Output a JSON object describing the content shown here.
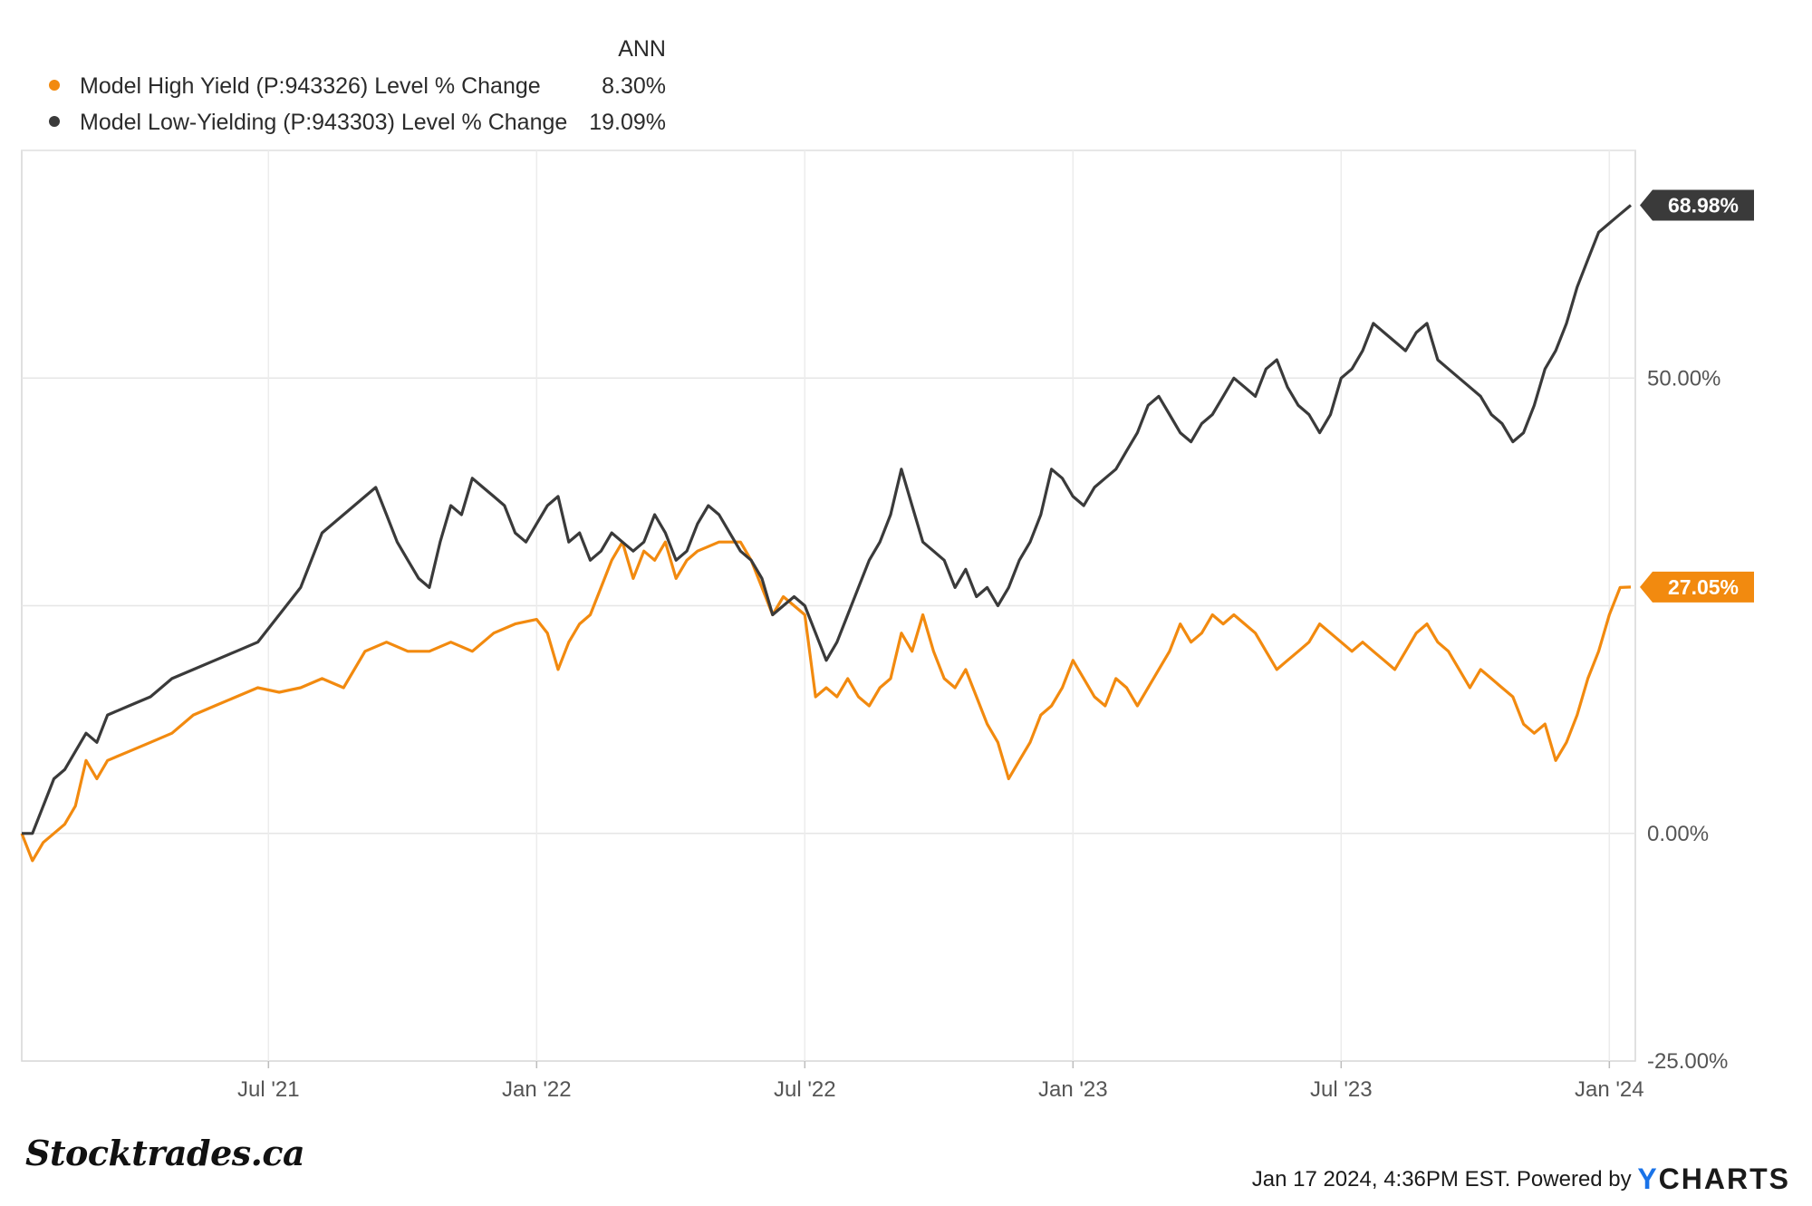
{
  "chart_data": {
    "type": "line",
    "legend": {
      "column_header": "ANN",
      "entries": [
        {
          "name": "Model High Yield (P:943326) Level % Change",
          "ann": "8.30%",
          "color": "#f28a0f"
        },
        {
          "name": "Model Low-Yielding (P:943303) Level % Change",
          "ann": "19.09%",
          "color": "#3a3a3a"
        }
      ]
    },
    "x_ticks": [
      "Jul '21",
      "Jan '22",
      "Jul '22",
      "Jan '23",
      "Jul '23",
      "Jan '24"
    ],
    "x_tick_times": [
      0.5,
      1.0,
      1.5,
      2.0,
      2.5,
      3.0
    ],
    "x_range": [
      0.04,
      3.04
    ],
    "y_ticks": [
      "50.00%",
      "0.00%",
      "-25.00%"
    ],
    "y_tick_values": [
      50,
      0,
      -25
    ],
    "y_gridlines": [
      75,
      50,
      25,
      0
    ],
    "ylim": [
      -25,
      75
    ],
    "series": [
      {
        "name": "Model High Yield",
        "color": "#f28a0f",
        "end_label": "27.05%",
        "end_value": 27.05,
        "points": [
          [
            0.04,
            0
          ],
          [
            0.06,
            -3
          ],
          [
            0.08,
            -1
          ],
          [
            0.1,
            0
          ],
          [
            0.12,
            1
          ],
          [
            0.14,
            3
          ],
          [
            0.16,
            8
          ],
          [
            0.18,
            6
          ],
          [
            0.2,
            8
          ],
          [
            0.24,
            9
          ],
          [
            0.28,
            10
          ],
          [
            0.32,
            11
          ],
          [
            0.36,
            13
          ],
          [
            0.4,
            14
          ],
          [
            0.44,
            15
          ],
          [
            0.48,
            16
          ],
          [
            0.52,
            15.5
          ],
          [
            0.56,
            16
          ],
          [
            0.6,
            17
          ],
          [
            0.64,
            16
          ],
          [
            0.68,
            20
          ],
          [
            0.72,
            21
          ],
          [
            0.76,
            20
          ],
          [
            0.8,
            20
          ],
          [
            0.84,
            21
          ],
          [
            0.88,
            20
          ],
          [
            0.92,
            22
          ],
          [
            0.96,
            23
          ],
          [
            1.0,
            23.5
          ],
          [
            1.02,
            22
          ],
          [
            1.04,
            18
          ],
          [
            1.06,
            21
          ],
          [
            1.08,
            23
          ],
          [
            1.1,
            24
          ],
          [
            1.12,
            27
          ],
          [
            1.14,
            30
          ],
          [
            1.16,
            32
          ],
          [
            1.18,
            28
          ],
          [
            1.2,
            31
          ],
          [
            1.22,
            30
          ],
          [
            1.24,
            32
          ],
          [
            1.26,
            28
          ],
          [
            1.28,
            30
          ],
          [
            1.3,
            31
          ],
          [
            1.32,
            31.5
          ],
          [
            1.34,
            32
          ],
          [
            1.36,
            32
          ],
          [
            1.38,
            32
          ],
          [
            1.4,
            30
          ],
          [
            1.42,
            27
          ],
          [
            1.44,
            24
          ],
          [
            1.46,
            26
          ],
          [
            1.48,
            25
          ],
          [
            1.5,
            24
          ],
          [
            1.52,
            15
          ],
          [
            1.54,
            16
          ],
          [
            1.56,
            15
          ],
          [
            1.58,
            17
          ],
          [
            1.6,
            15
          ],
          [
            1.62,
            14
          ],
          [
            1.64,
            16
          ],
          [
            1.66,
            17
          ],
          [
            1.68,
            22
          ],
          [
            1.7,
            20
          ],
          [
            1.72,
            24
          ],
          [
            1.74,
            20
          ],
          [
            1.76,
            17
          ],
          [
            1.78,
            16
          ],
          [
            1.8,
            18
          ],
          [
            1.82,
            15
          ],
          [
            1.84,
            12
          ],
          [
            1.86,
            10
          ],
          [
            1.88,
            6
          ],
          [
            1.9,
            8
          ],
          [
            1.92,
            10
          ],
          [
            1.94,
            13
          ],
          [
            1.96,
            14
          ],
          [
            1.98,
            16
          ],
          [
            2.0,
            19
          ],
          [
            2.02,
            17
          ],
          [
            2.04,
            15
          ],
          [
            2.06,
            14
          ],
          [
            2.08,
            17
          ],
          [
            2.1,
            16
          ],
          [
            2.12,
            14
          ],
          [
            2.14,
            16
          ],
          [
            2.16,
            18
          ],
          [
            2.18,
            20
          ],
          [
            2.2,
            23
          ],
          [
            2.22,
            21
          ],
          [
            2.24,
            22
          ],
          [
            2.26,
            24
          ],
          [
            2.28,
            23
          ],
          [
            2.3,
            24
          ],
          [
            2.32,
            23
          ],
          [
            2.34,
            22
          ],
          [
            2.36,
            20
          ],
          [
            2.38,
            18
          ],
          [
            2.4,
            19
          ],
          [
            2.42,
            20
          ],
          [
            2.44,
            21
          ],
          [
            2.46,
            23
          ],
          [
            2.48,
            22
          ],
          [
            2.5,
            21
          ],
          [
            2.52,
            20
          ],
          [
            2.54,
            21
          ],
          [
            2.56,
            20
          ],
          [
            2.58,
            19
          ],
          [
            2.6,
            18
          ],
          [
            2.62,
            20
          ],
          [
            2.64,
            22
          ],
          [
            2.66,
            23
          ],
          [
            2.68,
            21
          ],
          [
            2.7,
            20
          ],
          [
            2.72,
            18
          ],
          [
            2.74,
            16
          ],
          [
            2.76,
            18
          ],
          [
            2.78,
            17
          ],
          [
            2.8,
            16
          ],
          [
            2.82,
            15
          ],
          [
            2.84,
            12
          ],
          [
            2.86,
            11
          ],
          [
            2.88,
            12
          ],
          [
            2.9,
            8
          ],
          [
            2.92,
            10
          ],
          [
            2.94,
            13
          ],
          [
            2.96,
            17
          ],
          [
            2.98,
            20
          ],
          [
            3.0,
            24
          ],
          [
            3.02,
            27
          ],
          [
            3.04,
            27.05
          ]
        ]
      },
      {
        "name": "Model Low-Yielding",
        "color": "#3a3a3a",
        "end_label": "68.98%",
        "end_value": 68.98,
        "points": [
          [
            0.04,
            0
          ],
          [
            0.06,
            0
          ],
          [
            0.08,
            3
          ],
          [
            0.1,
            6
          ],
          [
            0.12,
            7
          ],
          [
            0.14,
            9
          ],
          [
            0.16,
            11
          ],
          [
            0.18,
            10
          ],
          [
            0.2,
            13
          ],
          [
            0.24,
            14
          ],
          [
            0.28,
            15
          ],
          [
            0.32,
            17
          ],
          [
            0.36,
            18
          ],
          [
            0.4,
            19
          ],
          [
            0.44,
            20
          ],
          [
            0.48,
            21
          ],
          [
            0.52,
            24
          ],
          [
            0.56,
            27
          ],
          [
            0.6,
            33
          ],
          [
            0.64,
            35
          ],
          [
            0.68,
            37
          ],
          [
            0.7,
            38
          ],
          [
            0.72,
            35
          ],
          [
            0.74,
            32
          ],
          [
            0.76,
            30
          ],
          [
            0.78,
            28
          ],
          [
            0.8,
            27
          ],
          [
            0.82,
            32
          ],
          [
            0.84,
            36
          ],
          [
            0.86,
            35
          ],
          [
            0.88,
            39
          ],
          [
            0.9,
            38
          ],
          [
            0.92,
            37
          ],
          [
            0.94,
            36
          ],
          [
            0.96,
            33
          ],
          [
            0.98,
            32
          ],
          [
            1.0,
            34
          ],
          [
            1.02,
            36
          ],
          [
            1.04,
            37
          ],
          [
            1.06,
            32
          ],
          [
            1.08,
            33
          ],
          [
            1.1,
            30
          ],
          [
            1.12,
            31
          ],
          [
            1.14,
            33
          ],
          [
            1.16,
            32
          ],
          [
            1.18,
            31
          ],
          [
            1.2,
            32
          ],
          [
            1.22,
            35
          ],
          [
            1.24,
            33
          ],
          [
            1.26,
            30
          ],
          [
            1.28,
            31
          ],
          [
            1.3,
            34
          ],
          [
            1.32,
            36
          ],
          [
            1.34,
            35
          ],
          [
            1.36,
            33
          ],
          [
            1.38,
            31
          ],
          [
            1.4,
            30
          ],
          [
            1.42,
            28
          ],
          [
            1.44,
            24
          ],
          [
            1.46,
            25
          ],
          [
            1.48,
            26
          ],
          [
            1.5,
            25
          ],
          [
            1.52,
            22
          ],
          [
            1.54,
            19
          ],
          [
            1.56,
            21
          ],
          [
            1.58,
            24
          ],
          [
            1.6,
            27
          ],
          [
            1.62,
            30
          ],
          [
            1.64,
            32
          ],
          [
            1.66,
            35
          ],
          [
            1.68,
            40
          ],
          [
            1.7,
            36
          ],
          [
            1.72,
            32
          ],
          [
            1.74,
            31
          ],
          [
            1.76,
            30
          ],
          [
            1.78,
            27
          ],
          [
            1.8,
            29
          ],
          [
            1.82,
            26
          ],
          [
            1.84,
            27
          ],
          [
            1.86,
            25
          ],
          [
            1.88,
            27
          ],
          [
            1.9,
            30
          ],
          [
            1.92,
            32
          ],
          [
            1.94,
            35
          ],
          [
            1.96,
            40
          ],
          [
            1.98,
            39
          ],
          [
            2.0,
            37
          ],
          [
            2.02,
            36
          ],
          [
            2.04,
            38
          ],
          [
            2.06,
            39
          ],
          [
            2.08,
            40
          ],
          [
            2.1,
            42
          ],
          [
            2.12,
            44
          ],
          [
            2.14,
            47
          ],
          [
            2.16,
            48
          ],
          [
            2.18,
            46
          ],
          [
            2.2,
            44
          ],
          [
            2.22,
            43
          ],
          [
            2.24,
            45
          ],
          [
            2.26,
            46
          ],
          [
            2.28,
            48
          ],
          [
            2.3,
            50
          ],
          [
            2.32,
            49
          ],
          [
            2.34,
            48
          ],
          [
            2.36,
            51
          ],
          [
            2.38,
            52
          ],
          [
            2.4,
            49
          ],
          [
            2.42,
            47
          ],
          [
            2.44,
            46
          ],
          [
            2.46,
            44
          ],
          [
            2.48,
            46
          ],
          [
            2.5,
            50
          ],
          [
            2.52,
            51
          ],
          [
            2.54,
            53
          ],
          [
            2.56,
            56
          ],
          [
            2.58,
            55
          ],
          [
            2.6,
            54
          ],
          [
            2.62,
            53
          ],
          [
            2.64,
            55
          ],
          [
            2.66,
            56
          ],
          [
            2.68,
            52
          ],
          [
            2.7,
            51
          ],
          [
            2.72,
            50
          ],
          [
            2.74,
            49
          ],
          [
            2.76,
            48
          ],
          [
            2.78,
            46
          ],
          [
            2.8,
            45
          ],
          [
            2.82,
            43
          ],
          [
            2.84,
            44
          ],
          [
            2.86,
            47
          ],
          [
            2.88,
            51
          ],
          [
            2.9,
            53
          ],
          [
            2.92,
            56
          ],
          [
            2.94,
            60
          ],
          [
            2.96,
            63
          ],
          [
            2.98,
            66
          ],
          [
            3.0,
            67
          ],
          [
            3.02,
            68
          ],
          [
            3.04,
            68.98
          ]
        ]
      }
    ]
  },
  "footer": {
    "brand": "Stocktrades.ca",
    "timestamp": "Jan 17 2024, 4:36PM EST. Powered by",
    "ycharts_y": "Y",
    "ycharts_rest": "CHARTS"
  }
}
